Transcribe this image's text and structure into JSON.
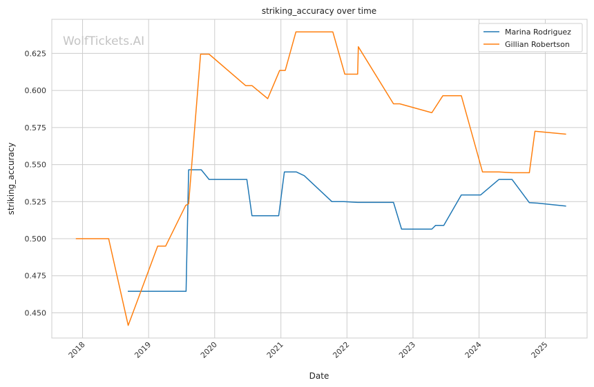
{
  "chart_data": {
    "type": "line",
    "title": "striking_accuracy over time",
    "xlabel": "Date",
    "ylabel": "striking_accuracy",
    "watermark": "WolfTickets.AI",
    "x_ticks": [
      "2018",
      "2019",
      "2020",
      "2021",
      "2022",
      "2023",
      "2024",
      "2025"
    ],
    "y_ticks": [
      "0.450",
      "0.475",
      "0.500",
      "0.525",
      "0.550",
      "0.575",
      "0.600",
      "0.625"
    ],
    "ylim": [
      0.433,
      0.648
    ],
    "xlim": [
      "2017-07-15",
      "2025-08-20"
    ],
    "grid": true,
    "legend_position": "top-right",
    "series": [
      {
        "name": "Marina Rodriguez",
        "color": "#1f77b4",
        "points": [
          [
            "2018-09-08",
            0.4645
          ],
          [
            "2019-07-27",
            0.4645
          ],
          [
            "2019-08-10",
            0.5465
          ],
          [
            "2019-10-19",
            0.5465
          ],
          [
            "2019-12-01",
            0.54
          ],
          [
            "2020-06-27",
            0.54
          ],
          [
            "2020-07-25",
            0.5155
          ],
          [
            "2020-12-20",
            0.5155
          ],
          [
            "2021-01-20",
            0.545
          ],
          [
            "2021-03-28",
            0.545
          ],
          [
            "2021-05-10",
            0.5425
          ],
          [
            "2021-10-10",
            0.525
          ],
          [
            "2021-12-15",
            0.525
          ],
          [
            "2022-03-01",
            0.5245
          ],
          [
            "2022-09-15",
            0.5245
          ],
          [
            "2022-10-30",
            0.5065
          ],
          [
            "2023-04-15",
            0.5065
          ],
          [
            "2023-05-06",
            0.509
          ],
          [
            "2023-06-20",
            0.509
          ],
          [
            "2023-09-25",
            0.5295
          ],
          [
            "2024-01-10",
            0.5295
          ],
          [
            "2024-04-20",
            0.54
          ],
          [
            "2024-07-01",
            0.54
          ],
          [
            "2024-10-05",
            0.5243
          ],
          [
            "2024-11-20",
            0.524
          ],
          [
            "2025-04-26",
            0.522
          ]
        ]
      },
      {
        "name": "Gillian Robertson",
        "color": "#ff7f0e",
        "points": [
          [
            "2017-11-25",
            0.5
          ],
          [
            "2018-05-25",
            0.5
          ],
          [
            "2018-09-10",
            0.4415
          ],
          [
            "2019-02-20",
            0.495
          ],
          [
            "2019-04-05",
            0.495
          ],
          [
            "2019-07-25",
            0.5225
          ],
          [
            "2019-08-10",
            0.5235
          ],
          [
            "2019-10-15",
            0.6245
          ],
          [
            "2019-12-01",
            0.6245
          ],
          [
            "2020-06-20",
            0.6033
          ],
          [
            "2020-07-25",
            0.6033
          ],
          [
            "2020-10-20",
            0.5945
          ],
          [
            "2020-12-25",
            0.6135
          ],
          [
            "2021-01-25",
            0.6135
          ],
          [
            "2021-03-25",
            0.6395
          ],
          [
            "2021-10-15",
            0.6395
          ],
          [
            "2021-12-20",
            0.611
          ],
          [
            "2022-03-01",
            0.611
          ],
          [
            "2022-03-05",
            0.6295
          ],
          [
            "2022-09-15",
            0.591
          ],
          [
            "2022-10-20",
            0.591
          ],
          [
            "2023-04-15",
            0.585
          ],
          [
            "2023-06-15",
            0.5965
          ],
          [
            "2023-09-25",
            0.5965
          ],
          [
            "2024-01-20",
            0.545
          ],
          [
            "2024-04-20",
            0.545
          ],
          [
            "2024-07-01",
            0.5445
          ],
          [
            "2024-10-05",
            0.5445
          ],
          [
            "2024-11-05",
            0.5725
          ],
          [
            "2025-04-26",
            0.5705
          ]
        ]
      }
    ]
  }
}
